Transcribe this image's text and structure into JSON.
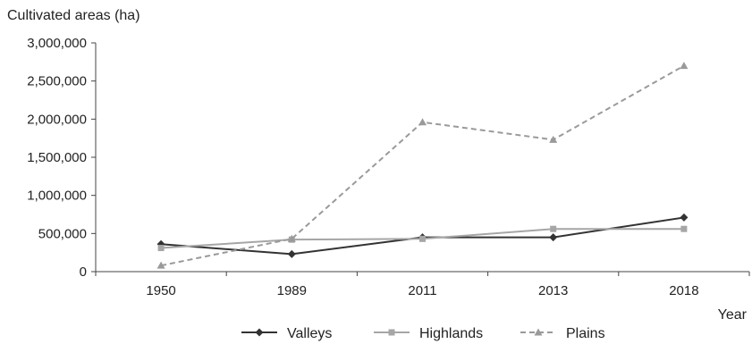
{
  "chart_data": {
    "type": "line",
    "ylabel": "Cultivated areas (ha)",
    "xlabel": "Year",
    "categories": [
      "1950",
      "1989",
      "2011",
      "2013",
      "2018"
    ],
    "ylim": [
      0,
      3000000
    ],
    "yticks": [
      0,
      500000,
      1000000,
      1500000,
      2000000,
      2500000,
      3000000
    ],
    "ytick_labels": [
      "0",
      "500,000",
      "1,000,000",
      "1,500,000",
      "2,000,000",
      "2,500,000",
      "3,000,000"
    ],
    "grid": false,
    "legend_position": "bottom",
    "series": [
      {
        "name": "Valleys",
        "values": [
          360000,
          230000,
          450000,
          450000,
          710000
        ],
        "color": "#333333",
        "dash": "solid",
        "marker": "diamond"
      },
      {
        "name": "Highlands",
        "values": [
          310000,
          420000,
          430000,
          560000,
          560000
        ],
        "color": "#a6a6a6",
        "dash": "solid",
        "marker": "square"
      },
      {
        "name": "Plains",
        "values": [
          80000,
          430000,
          1960000,
          1730000,
          2700000
        ],
        "color": "#9a9a9a",
        "dash": "dashed",
        "marker": "triangle"
      }
    ]
  }
}
